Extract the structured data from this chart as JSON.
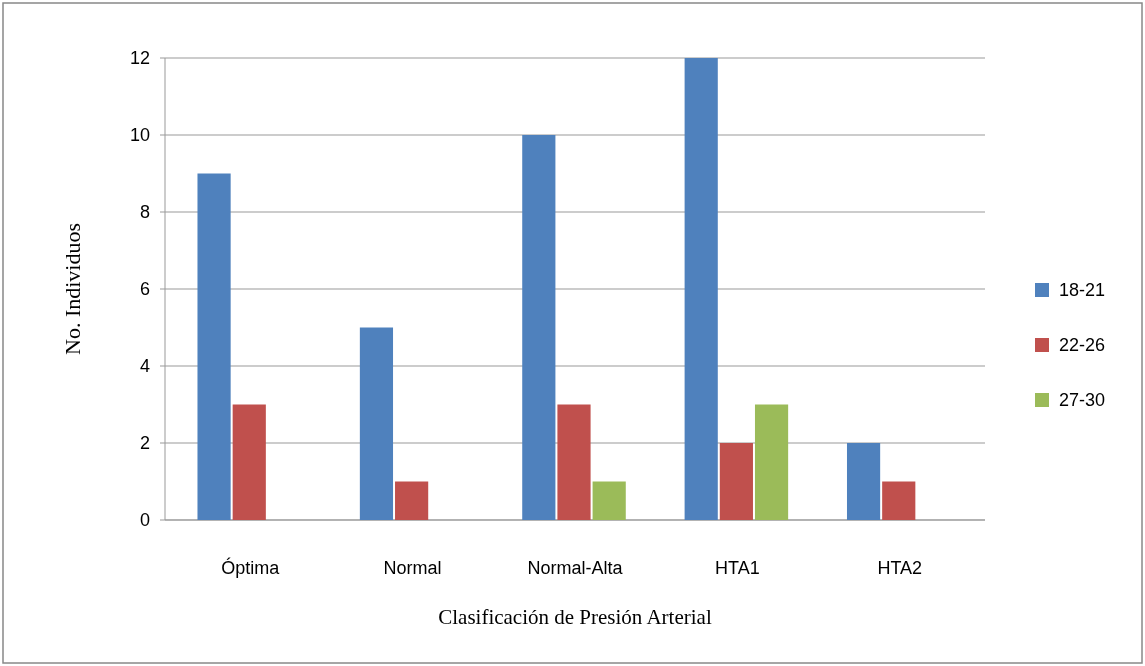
{
  "chart_data": {
    "type": "bar",
    "xlabel": "Clasificación de Presión Arterial",
    "ylabel": "No. Individuos",
    "categories": [
      "Óptima",
      "Normal",
      "Normal-Alta",
      "HTA1",
      "HTA2"
    ],
    "series": [
      {
        "name": "18-21",
        "color": "#4f81bd",
        "values": [
          9,
          5,
          10,
          12,
          2
        ]
      },
      {
        "name": "22-26",
        "color": "#c0504d",
        "values": [
          3,
          1,
          3,
          2,
          1
        ]
      },
      {
        "name": "27-30",
        "color": "#9bbb59",
        "values": [
          0,
          0,
          1,
          3,
          0
        ]
      }
    ],
    "ylim": [
      0,
      12
    ],
    "yticks": [
      0,
      2,
      4,
      6,
      8,
      10,
      12
    ],
    "grid": "y",
    "legend": "right"
  }
}
